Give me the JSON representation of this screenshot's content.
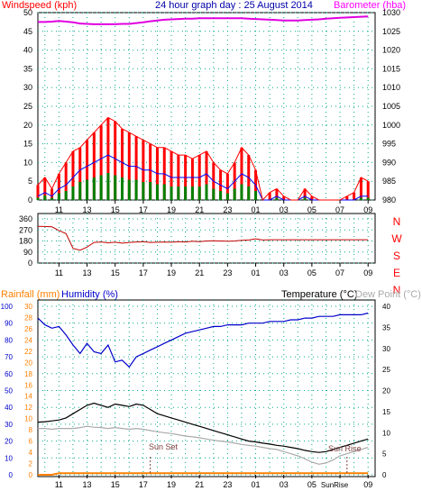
{
  "colors": {
    "wind_label": "#ff0000",
    "title": "#0000aa",
    "baro_label": "#ff00ff",
    "baro_line": "#e000e0",
    "wind_gust": "#ff0000",
    "wind_avg": "#0000ff",
    "wind_base": "#008000",
    "dir_line": "#c00000",
    "compass": "#ff0000",
    "rain": "#ff8000",
    "humidity": "#0000cc",
    "temp": "#000000",
    "dew": "#aaaaaa",
    "grid": "#00aa88",
    "sun_text": "#804040"
  },
  "chart_data": [
    {
      "type": "line",
      "title": "24 hour graph day : 25 August 2014",
      "left_label": "Windspeed (kph)",
      "right_label": "Barometer (hba)",
      "x_tick_labels": [
        "11",
        "13",
        "15",
        "17",
        "19",
        "21",
        "23",
        "01",
        "03",
        "05",
        "07",
        "09"
      ],
      "y_left_ticks": [
        0,
        5,
        10,
        15,
        20,
        25,
        30,
        35,
        40,
        45,
        50
      ],
      "y_right_ticks": [
        980,
        985,
        990,
        995,
        1000,
        1005,
        1010,
        1015,
        1020,
        1025,
        1030
      ],
      "ylim_left": [
        0,
        50
      ],
      "ylim_right": [
        980,
        1030
      ],
      "grid": true,
      "series": [
        {
          "name": "Windspeed gust",
          "x": [
            9.5,
            10,
            10.5,
            11,
            11.5,
            12,
            12.5,
            13,
            13.5,
            14,
            14.5,
            15,
            15.5,
            16,
            16.5,
            17,
            17.5,
            18,
            18.5,
            19,
            19.5,
            20,
            20.5,
            21,
            21.5,
            22,
            22.5,
            23,
            23.5,
            24,
            24.5,
            25,
            25.5,
            26,
            26.5,
            27,
            27.5,
            28,
            28.5,
            29,
            29.5,
            30,
            30.5,
            31,
            31.5,
            32,
            32.5,
            33
          ],
          "values": [
            4,
            6,
            3,
            7,
            10,
            13,
            14,
            16,
            18,
            20,
            22,
            21,
            19,
            18,
            17,
            16,
            15,
            14,
            14,
            13,
            12,
            12,
            11,
            12,
            13,
            10,
            8,
            7,
            10,
            14,
            12,
            8,
            0,
            2,
            3,
            1,
            0,
            0,
            3,
            1,
            0,
            0,
            0,
            0,
            1,
            2,
            6,
            5
          ]
        },
        {
          "name": "Windspeed average",
          "x": [
            9.5,
            10,
            10.5,
            11,
            11.5,
            12,
            12.5,
            13,
            13.5,
            14,
            14.5,
            15,
            15.5,
            16,
            16.5,
            17,
            17.5,
            18,
            18.5,
            19,
            19.5,
            20,
            20.5,
            21,
            21.5,
            22,
            22.5,
            23,
            23.5,
            24,
            24.5,
            25,
            25.5,
            26,
            26.5,
            27,
            27.5,
            28,
            28.5,
            29,
            29.5,
            30,
            30.5,
            31,
            31.5,
            32,
            32.5,
            33
          ],
          "values": [
            1,
            2,
            1,
            3,
            4,
            6,
            8,
            9,
            10,
            11,
            12,
            11,
            10,
            9,
            9,
            8,
            8,
            7,
            7,
            6,
            6,
            6,
            6,
            6,
            7,
            5,
            4,
            3,
            5,
            7,
            6,
            4,
            0,
            0,
            1,
            0,
            0,
            0,
            1,
            0,
            0,
            0,
            0,
            0,
            0,
            0,
            1,
            1
          ]
        },
        {
          "name": "Barometer",
          "axis": "right",
          "x": [
            9.5,
            10,
            10.5,
            11,
            11.5,
            12,
            12.5,
            13,
            13.5,
            14,
            14.5,
            15,
            15.5,
            16,
            16.5,
            17,
            17.5,
            18,
            18.5,
            19,
            19.5,
            20,
            20.5,
            21,
            21.5,
            22,
            22.5,
            23,
            23.5,
            24,
            24.5,
            25,
            25.5,
            26,
            26.5,
            27,
            27.5,
            28,
            28.5,
            29,
            29.5,
            30,
            30.5,
            31,
            31.5,
            32,
            32.5,
            33
          ],
          "values": [
            1027.5,
            1027.5,
            1027.6,
            1027.8,
            1027.6,
            1027.4,
            1027.1,
            1027,
            1026.9,
            1026.9,
            1026.9,
            1026.9,
            1027,
            1027,
            1027.2,
            1027.4,
            1027.7,
            1027.9,
            1028.1,
            1028.2,
            1028.3,
            1028.4,
            1028.4,
            1028.5,
            1028.5,
            1028.5,
            1028.5,
            1028.5,
            1028.5,
            1028.5,
            1028.4,
            1028.3,
            1028.2,
            1028.1,
            1028,
            1027.9,
            1027.9,
            1027.9,
            1028,
            1028.1,
            1028.2,
            1028.4,
            1028.5,
            1028.6,
            1028.7,
            1028.8,
            1028.9,
            1029
          ]
        }
      ]
    },
    {
      "type": "line",
      "x_tick_labels": [
        "11",
        "13",
        "15",
        "17",
        "19",
        "21",
        "23",
        "01",
        "03",
        "05",
        "07",
        "09"
      ],
      "y_ticks": [
        0,
        90,
        180,
        270,
        360
      ],
      "compass_labels": [
        "N",
        "W",
        "S",
        "E",
        "N"
      ],
      "ylim": [
        0,
        360
      ],
      "grid": true,
      "series": [
        {
          "name": "Wind direction",
          "x": [
            9.5,
            10,
            10.5,
            11,
            11.5,
            12,
            12.5,
            13,
            13.5,
            14,
            14.5,
            15,
            15.5,
            16,
            16.5,
            17,
            17.5,
            18,
            18.5,
            19,
            19.5,
            20,
            20.5,
            21,
            21.5,
            22,
            22.5,
            23,
            23.5,
            24,
            24.5,
            25,
            25.5,
            26,
            26.5,
            27,
            27.5,
            28,
            28.5,
            29,
            29.5,
            30,
            30.5,
            31,
            31.5,
            32,
            32.5,
            33
          ],
          "values": [
            300,
            298,
            295,
            265,
            240,
            120,
            105,
            130,
            168,
            172,
            165,
            170,
            162,
            168,
            172,
            175,
            168,
            170,
            172,
            170,
            175,
            172,
            178,
            175,
            180,
            182,
            180,
            178,
            180,
            185,
            188,
            198,
            188,
            190,
            190,
            190,
            190,
            190,
            190,
            190,
            190,
            190,
            190,
            190,
            190,
            190,
            190,
            190
          ]
        }
      ]
    },
    {
      "type": "line",
      "left_label_rain": "Rainfall (mm)",
      "left_label_humidity": "Humidity (%)",
      "right_label_temp": "Temperature (°C)",
      "right_label_dew": "Dew Point (°C)",
      "x_tick_labels": [
        "11",
        "13",
        "15",
        "17",
        "19",
        "21",
        "23",
        "01",
        "03",
        "05",
        "07",
        "09"
      ],
      "sun_rise_tick_label": "SunRise",
      "humidity_ticks": [
        0,
        10,
        20,
        30,
        40,
        50,
        60,
        70,
        80,
        90,
        100
      ],
      "rain_ticks": [
        0,
        2,
        4,
        6,
        8,
        10,
        12,
        14,
        16,
        18,
        20,
        22,
        24,
        26,
        28,
        30
      ],
      "temp_ticks": [
        0,
        5,
        10,
        15,
        20,
        25,
        30,
        35,
        40
      ],
      "annotations": [
        "Sun Set",
        "Sun Rise"
      ],
      "grid": true,
      "series": [
        {
          "name": "Humidity",
          "x": [
            9.5,
            10,
            10.5,
            11,
            11.5,
            12,
            12.5,
            13,
            13.5,
            14,
            14.5,
            15,
            15.5,
            16,
            16.5,
            17,
            17.5,
            18,
            18.5,
            19,
            19.5,
            20,
            20.5,
            21,
            21.5,
            22,
            22.5,
            23,
            23.5,
            24,
            24.5,
            25,
            25.5,
            26,
            26.5,
            27,
            27.5,
            28,
            28.5,
            29,
            29.5,
            30,
            30.5,
            31,
            31.5,
            32,
            32.5,
            33
          ],
          "values": [
            93,
            89,
            87,
            88,
            83,
            77,
            72,
            78,
            73,
            72,
            77,
            67,
            68,
            64,
            70,
            72,
            74,
            76,
            78,
            80,
            82,
            84,
            85,
            86,
            87,
            88,
            88,
            89,
            89,
            89,
            90,
            90,
            90,
            91,
            91,
            91,
            92,
            92,
            93,
            93,
            94,
            94,
            94,
            95,
            95,
            95,
            95,
            96
          ]
        },
        {
          "name": "Temperature",
          "axis": "right",
          "x": [
            9.5,
            10,
            10.5,
            11,
            11.5,
            12,
            12.5,
            13,
            13.5,
            14,
            14.5,
            15,
            15.5,
            16,
            16.5,
            17,
            17.5,
            18,
            18.5,
            19,
            19.5,
            20,
            20.5,
            21,
            21.5,
            22,
            22.5,
            23,
            23.5,
            24,
            24.5,
            25,
            25.5,
            26,
            26.5,
            27,
            27.5,
            28,
            28.5,
            29,
            29.5,
            30,
            30.5,
            31,
            31.5,
            32,
            32.5,
            33
          ],
          "values": [
            12.5,
            12.6,
            12.8,
            13,
            13.5,
            14.5,
            15.5,
            16.5,
            17,
            16.5,
            16,
            16.8,
            16.5,
            16.2,
            16.8,
            16.5,
            15.5,
            14.5,
            14,
            13.5,
            13,
            12.5,
            12,
            11.5,
            11,
            10.5,
            10,
            9.5,
            9,
            8.5,
            8,
            7.8,
            7.5,
            7.3,
            7,
            6.8,
            6.5,
            6.2,
            5.8,
            5.5,
            5.3,
            5.5,
            6,
            6.5,
            7,
            7.5,
            8,
            8.5
          ]
        },
        {
          "name": "Dew Point",
          "axis": "right",
          "x": [
            9.5,
            10,
            10.5,
            11,
            11.5,
            12,
            12.5,
            13,
            13.5,
            14,
            14.5,
            15,
            15.5,
            16,
            16.5,
            17,
            17.5,
            18,
            18.5,
            19,
            19.5,
            20,
            20.5,
            21,
            21.5,
            22,
            22.5,
            23,
            23.5,
            24,
            24.5,
            25,
            25.5,
            26,
            26.5,
            27,
            27.5,
            28,
            28.5,
            29,
            29.5,
            30,
            30.5,
            31,
            31.5,
            32,
            32.5,
            33
          ],
          "values": [
            11,
            11,
            10.8,
            11,
            11,
            11,
            11.2,
            11.5,
            11.3,
            11.2,
            11,
            11.2,
            11,
            10.8,
            11,
            10.8,
            10.5,
            10.2,
            10,
            9.8,
            9.5,
            9.2,
            9,
            8.8,
            8.5,
            8.2,
            8,
            7.8,
            7.5,
            7.2,
            7,
            6.8,
            6.5,
            6.2,
            6,
            5.5,
            5,
            4.5,
            3.8,
            3,
            2.5,
            2.8,
            3.5,
            4.5,
            5,
            5.5,
            6,
            6.5
          ]
        },
        {
          "name": "Rainfall",
          "x": [
            9.5,
            10.5,
            11,
            33
          ],
          "values": [
            0,
            0,
            0.3,
            0.3
          ]
        }
      ]
    }
  ]
}
